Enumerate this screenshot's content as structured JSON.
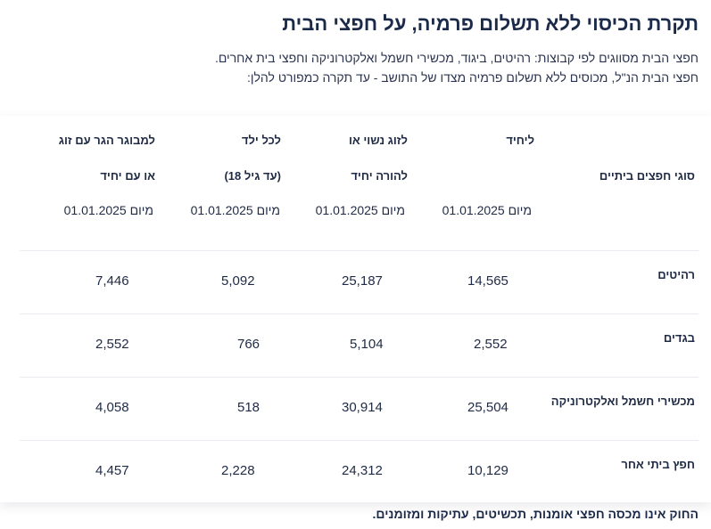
{
  "title": "תקרת הכיסוי ללא תשלום פרמיה, על חפצי הבית",
  "intro": {
    "line1": "חפצי הבית מסווגים לפי קבוצות: רהיטים, ביגוד, מכשירי חשמל ואלקטרוניקה וחפצי בית אחרים.",
    "line2": "חפצי הבית הנ\"ל, מכוסים ללא תשלום פרמיה מצדו של התושב - עד תקרה כמפורט להלן:"
  },
  "table": {
    "header_category": "סוגי חפצים ביתיים",
    "columns": [
      {
        "line1": "ליחיד",
        "line2": "",
        "date": "מיום 01.01.2025"
      },
      {
        "line1": "לזוג נשוי או",
        "line2": "להורה יחיד",
        "date": "מיום 01.01.2025"
      },
      {
        "line1": "לכל ילד",
        "line2": "(עד גיל 18)",
        "date": "מיום 01.01.2025"
      },
      {
        "line1": "למבוגר הגר עם זוג",
        "line2": "או עם יחיד",
        "date": "מיום 01.01.2025"
      }
    ],
    "rows": [
      {
        "label": "רהיטים",
        "values": [
          "14,565",
          "25,187",
          "5,092",
          "7,446"
        ]
      },
      {
        "label": "בגדים",
        "values": [
          "2,552",
          "5,104",
          "766",
          "2,552"
        ]
      },
      {
        "label": "מכשירי חשמל ואלקטרוניקה",
        "values": [
          "25,504",
          "30,914",
          "518",
          "4,058"
        ]
      },
      {
        "label": "חפץ ביתי אחר",
        "values": [
          "10,129",
          "24,312",
          "2,228",
          "4,457"
        ]
      }
    ]
  },
  "footnote": "החוק אינו מכסה חפצי אומנות, תכשיטים, עתיקות ומזומנים."
}
